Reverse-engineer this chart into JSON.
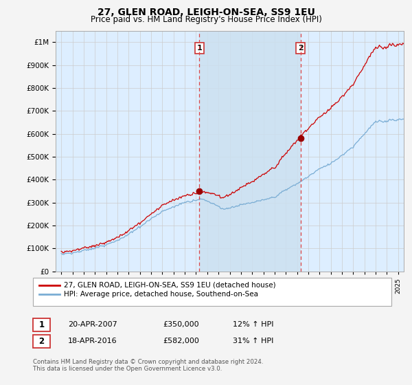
{
  "title": "27, GLEN ROAD, LEIGH-ON-SEA, SS9 1EU",
  "subtitle": "Price paid vs. HM Land Registry's House Price Index (HPI)",
  "legend_line1": "27, GLEN ROAD, LEIGH-ON-SEA, SS9 1EU (detached house)",
  "legend_line2": "HPI: Average price, detached house, Southend-on-Sea",
  "footnote1": "Contains HM Land Registry data © Crown copyright and database right 2024.",
  "footnote2": "This data is licensed under the Open Government Licence v3.0.",
  "sale1_date": "20-APR-2007",
  "sale1_price": "£350,000",
  "sale1_hpi": "12% ↑ HPI",
  "sale1_year": 2007.3,
  "sale1_value": 350000,
  "sale2_date": "18-APR-2016",
  "sale2_price": "£582,000",
  "sale2_hpi": "31% ↑ HPI",
  "sale2_year": 2016.3,
  "sale2_value": 582000,
  "hpi_color": "#7aadd4",
  "price_color": "#cc0000",
  "vline_color": "#dd4444",
  "bg_color": "#f4f4f4",
  "plot_bg_color": "#ddeeff",
  "shade_color": "#cce0f0",
  "ylim": [
    0,
    1050000
  ],
  "xlim": [
    1994.5,
    2025.5
  ],
  "grid_color": "#cccccc",
  "sale_marker_color": "#990000"
}
